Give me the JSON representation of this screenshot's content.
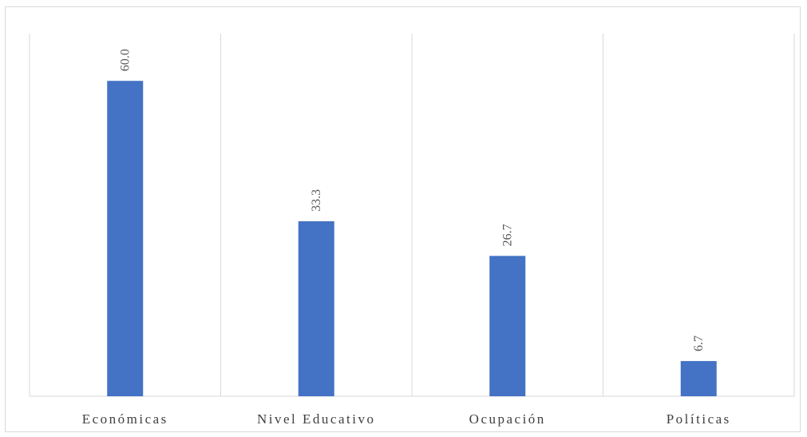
{
  "chart_data": {
    "type": "bar",
    "categories": [
      "Económicas",
      "Nivel Educativo",
      "Ocupación",
      "Políticas"
    ],
    "values": [
      60.0,
      33.3,
      26.7,
      6.7
    ],
    "data_labels": [
      "60.0",
      "33.3",
      "26.7",
      "6.7"
    ],
    "title": "",
    "xlabel": "",
    "ylabel": "",
    "ylim": [
      0,
      69
    ],
    "grid": "vertical category separators",
    "legend": "none",
    "bar_color": "#4472c4",
    "data_label_orientation": "rotated-vertical"
  }
}
